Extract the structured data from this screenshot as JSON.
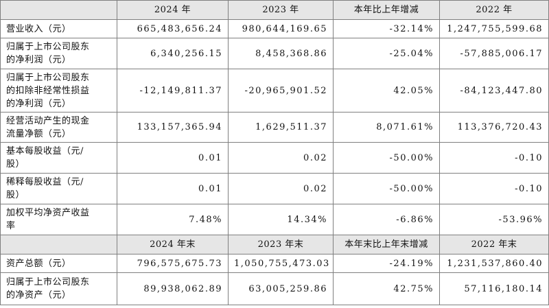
{
  "table": {
    "header": [
      "2024 年",
      "2023 年",
      "本年比上年增减",
      "2022 年"
    ],
    "rows": [
      [
        "营业收入（元）",
        "665,483,656.24",
        "980,644,169.65",
        "-32.14%",
        "1,247,755,599.68"
      ],
      [
        "归属于上市公司股东\n的净利润（元）",
        "6,340,256.15",
        "8,458,368.86",
        "-25.04%",
        "-57,885,006.17"
      ],
      [
        "归属于上市公司股东\n的扣除非经常性损益\n的净利润（元）",
        "-12,149,811.37",
        "-20,965,901.52",
        "42.05%",
        "-84,123,447.80"
      ],
      [
        "经营活动产生的现金\n流量净额（元）",
        "133,157,365.94",
        "1,629,511.37",
        "8,071.61%",
        "113,376,720.43"
      ],
      [
        "基本每股收益（元/\n股）",
        "0.01",
        "0.02",
        "-50.00%",
        "-0.10"
      ],
      [
        "稀释每股收益（元/\n股）",
        "0.01",
        "0.02",
        "-50.00%",
        "-0.10"
      ],
      [
        "加权平均净资产收益\n率",
        "7.48%",
        "14.34%",
        "-6.86%",
        "-53.96%"
      ]
    ],
    "header2": [
      "2024 年末",
      "2023 年末",
      "本年末比上年末增减",
      "2022 年末"
    ],
    "rows2": [
      [
        "资产总额（元）",
        "796,575,675.73",
        "1,050,755,473.03",
        "-24.19%",
        "1,231,537,860.40"
      ],
      [
        "归属于上市公司股东\n的净资产（元）",
        "89,938,062.89",
        "63,005,259.86",
        "42.75%",
        "57,116,180.14"
      ]
    ]
  }
}
